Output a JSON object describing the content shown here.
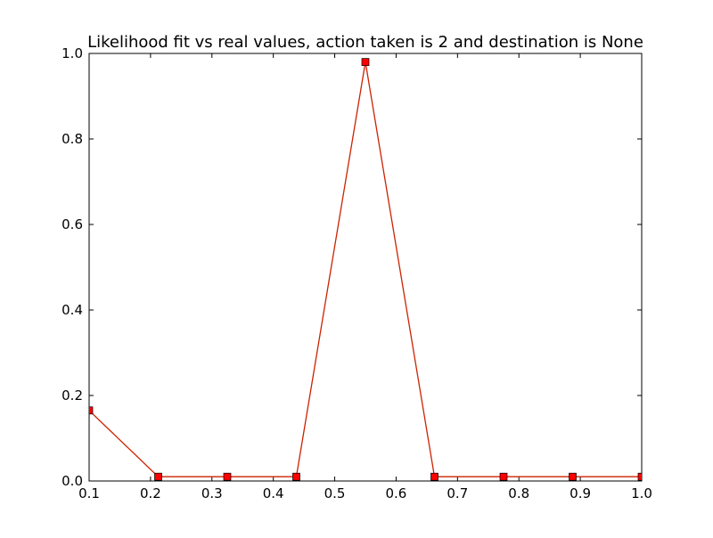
{
  "chart_data": {
    "type": "line",
    "title": "Likelihood fit vs real values, action taken is 2 and destination is None",
    "xlabel": "",
    "ylabel": "",
    "xlim": [
      0.1,
      1.0
    ],
    "ylim": [
      0.0,
      1.0
    ],
    "xticks": [
      "0.1",
      "0.2",
      "0.3",
      "0.4",
      "0.5",
      "0.6",
      "0.7",
      "0.8",
      "0.9",
      "1.0"
    ],
    "xtick_values": [
      0.1,
      0.2,
      0.3,
      0.4,
      0.5,
      0.6,
      0.7,
      0.8,
      0.9,
      1.0
    ],
    "yticks": [
      "0.0",
      "0.2",
      "0.4",
      "0.6",
      "0.8",
      "1.0"
    ],
    "ytick_values": [
      0.0,
      0.2,
      0.4,
      0.6,
      0.8,
      1.0
    ],
    "grid": false,
    "series": [
      {
        "color": "#ff0000",
        "line_color": "#cc2200",
        "marker": "square",
        "x": [
          0.1,
          0.2125,
          0.325,
          0.4375,
          0.55,
          0.6625,
          0.775,
          0.8875,
          1.0
        ],
        "y": [
          0.165,
          0.01,
          0.01,
          0.01,
          0.98,
          0.01,
          0.01,
          0.01,
          0.01
        ]
      }
    ]
  }
}
